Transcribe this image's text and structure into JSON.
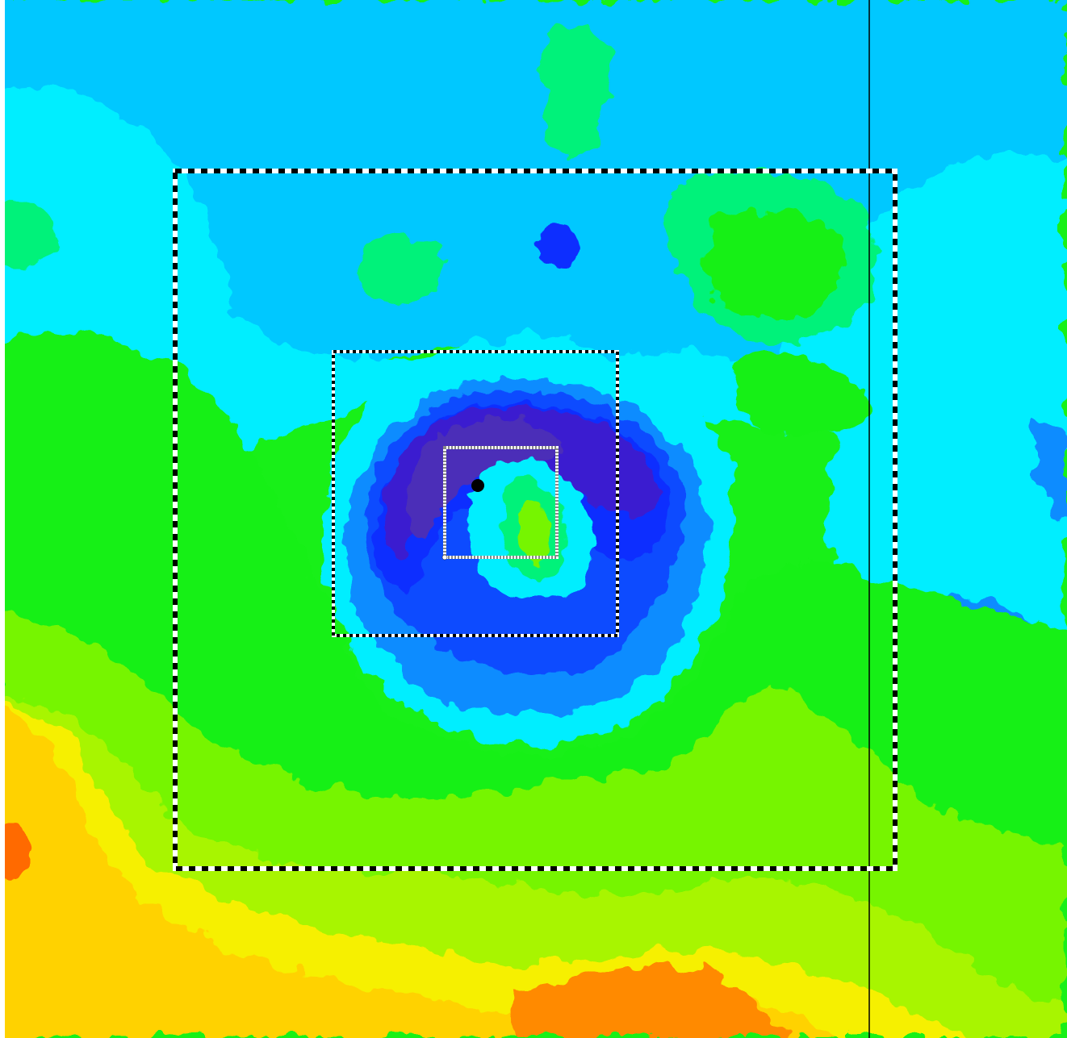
{
  "map": {
    "colors": {
      "deep_violet": "#4b2fb8",
      "indigo": "#3a1fd0",
      "royal_blue": "#0f2fff",
      "blue": "#0a4cff",
      "azure": "#0a8cff",
      "sky": "#00c8ff",
      "cyan": "#00eeff",
      "aqua_green": "#00f7b0",
      "spring_green": "#00f27a",
      "green": "#18f018",
      "lime": "#76f500",
      "chartreuse": "#a8f500",
      "yellow_green": "#d2f200",
      "yellow": "#f6f000",
      "gold": "#ffd200",
      "amber": "#ffb000",
      "orange": "#ff8a00",
      "dark_orange": "#ff6a00",
      "frame_black": "#000000",
      "frame_white": "#ffffff",
      "grey_box": "#a0a0a0"
    },
    "marker_icon": "filled-circle-icon"
  }
}
